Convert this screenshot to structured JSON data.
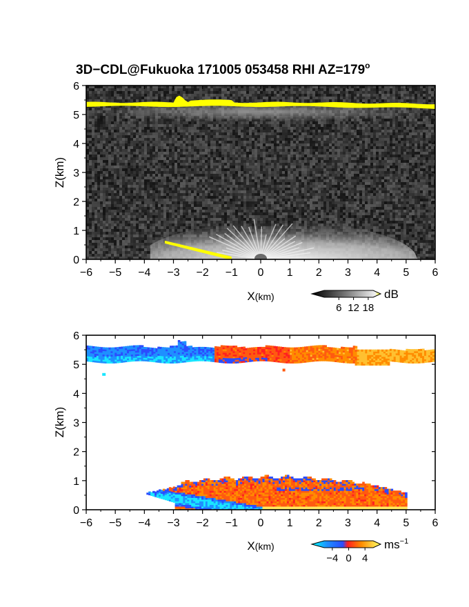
{
  "chart_data": [
    {
      "type": "heatmap",
      "title": "3D−CDL@Fukuoka 171005 053458 RHI AZ=179",
      "title_superscript": "o",
      "xlabel": "X",
      "xlabel_unit": "(km)",
      "ylabel": "Z(km)",
      "xlim": [
        -6,
        6
      ],
      "ylim": [
        0,
        6
      ],
      "xticks": [
        "−6",
        "−5",
        "−4",
        "−3",
        "−2",
        "−1",
        "0",
        "1",
        "2",
        "3",
        "4",
        "5",
        "6"
      ],
      "yticks": [
        "0",
        "1",
        "2",
        "3",
        "4",
        "5",
        "6"
      ],
      "colorbar": {
        "unit": "dB",
        "ticks": [
          "6",
          "12",
          "18"
        ],
        "range": [
          0,
          20
        ],
        "colors": [
          "#000000",
          "#3a3a3a",
          "#7a7a7a",
          "#b5b5b5",
          "#ececec",
          "#ffff00"
        ]
      },
      "features": [
        {
          "label": "",
          "x_range": [
            -6,
            6
          ],
          "z_range": [
            5.1,
            5.6
          ],
          "value_db": 20,
          "color": "#ffff00"
        },
        {
          "label": "",
          "x_range": [
            -3.3,
            -1
          ],
          "z_range": [
            0,
            0.55
          ],
          "value_db": 20,
          "color": "#ffff00"
        }
      ]
    },
    {
      "type": "heatmap",
      "xlabel": "X",
      "xlabel_unit": "(km)",
      "ylabel": "Z(km)",
      "xlim": [
        -6,
        6
      ],
      "ylim": [
        0,
        6
      ],
      "xticks": [
        "−6",
        "−5",
        "−4",
        "−3",
        "−2",
        "−1",
        "0",
        "1",
        "2",
        "3",
        "4",
        "5",
        "6"
      ],
      "yticks": [
        "0",
        "1",
        "2",
        "3",
        "4",
        "5",
        "6"
      ],
      "colorbar": {
        "unit": "ms",
        "unit_superscript": "−1",
        "ticks": [
          "−4",
          "0",
          "4"
        ],
        "range": [
          -6,
          6
        ],
        "colors": [
          "#00ffff",
          "#1e90ff",
          "#2b4cff",
          "#ff2020",
          "#ff8c00",
          "#ffd040",
          "#ffff60"
        ]
      },
      "features": [
        {
          "label": "",
          "x_range": [
            -6,
            -1.5
          ],
          "z_range": [
            5.0,
            5.6
          ],
          "velocity_ms": -2.5
        },
        {
          "label": "",
          "x_range": [
            -1.5,
            3.5
          ],
          "z_range": [
            5.0,
            5.6
          ],
          "velocity_ms": 2.0
        },
        {
          "label": "",
          "x_range": [
            3.5,
            6
          ],
          "z_range": [
            5.0,
            5.5
          ],
          "velocity_ms": 3.5
        },
        {
          "label": "",
          "x_range": [
            -3.8,
            0
          ],
          "z_range": [
            0,
            0.55
          ],
          "velocity_ms": -4.5
        },
        {
          "label": "",
          "x_range": [
            -4,
            5
          ],
          "z_range": [
            0,
            1.2
          ],
          "velocity_ms": 2.0
        }
      ]
    }
  ]
}
